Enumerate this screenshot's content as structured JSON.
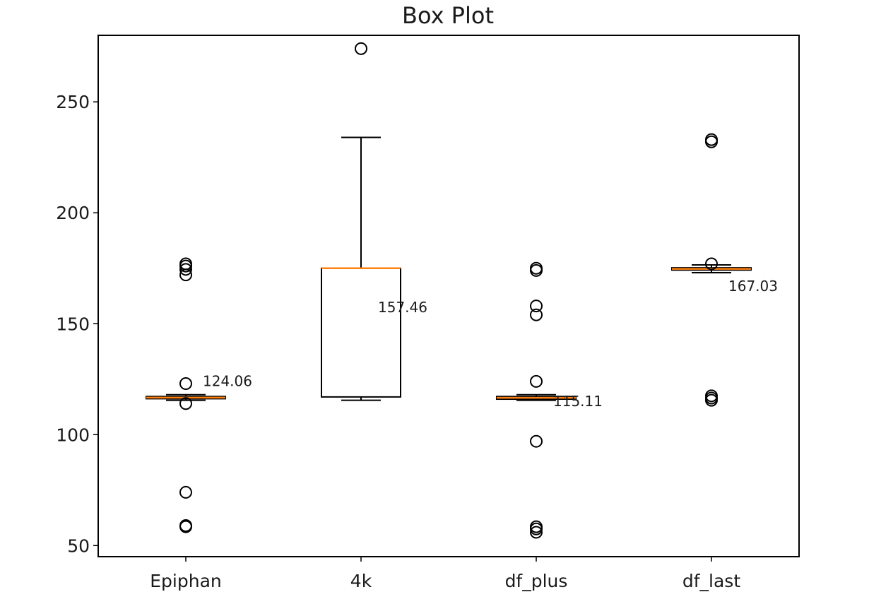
{
  "chart_data": {
    "type": "box",
    "title": "Box Plot",
    "xlabel": "",
    "ylabel": "",
    "ylim": [
      45,
      280
    ],
    "yticks": [
      50,
      100,
      150,
      200,
      250
    ],
    "grid": false,
    "colors": {
      "box": "#000000",
      "median": "#ff7f0e",
      "flier": "#000000"
    },
    "categories": [
      "Epiphan",
      "4k",
      "df_plus",
      "df_last"
    ],
    "boxes": [
      {
        "name": "Epiphan",
        "whisker_low": 115.5,
        "q1": 116.2,
        "median": 116.7,
        "q3": 117.2,
        "whisker_high": 118.0,
        "fliers": [
          58.5,
          59.0,
          74.0,
          114.0,
          123.0,
          172.0,
          174.5,
          176.0,
          177.0
        ],
        "annotation": "124.06"
      },
      {
        "name": "4k",
        "whisker_low": 115.5,
        "q1": 117.0,
        "median": 175.0,
        "q3": 175.0,
        "whisker_high": 234.0,
        "fliers": [
          274.0
        ],
        "annotation": "157.46"
      },
      {
        "name": "df_plus",
        "whisker_low": 115.5,
        "q1": 116.0,
        "median": 116.6,
        "q3": 117.2,
        "whisker_high": 118.0,
        "fliers": [
          56.0,
          57.5,
          58.5,
          97.0,
          124.0,
          154.0,
          158.0,
          174.0,
          175.0
        ],
        "annotation": "115.11"
      },
      {
        "name": "df_last",
        "whisker_low": 173.0,
        "q1": 174.2,
        "median": 174.7,
        "q3": 175.2,
        "whisker_high": 176.5,
        "fliers": [
          115.5,
          116.5,
          117.5,
          177.0,
          232.0,
          233.0
        ],
        "annotation": "167.03"
      }
    ]
  }
}
